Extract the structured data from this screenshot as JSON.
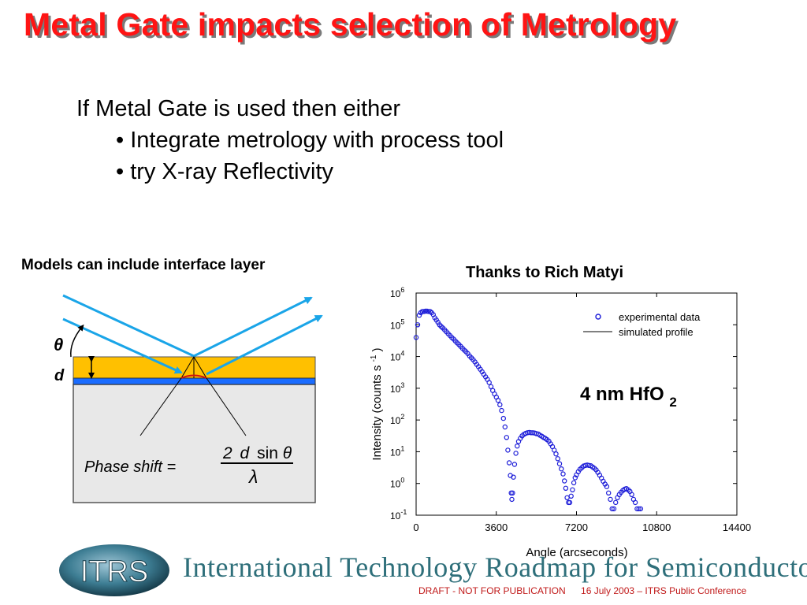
{
  "slide": {
    "title": "Metal Gate impacts selection of Metrology",
    "intro": "If Metal Gate is used then either",
    "bullets": [
      "• Integrate metrology with process tool",
      "• try X-ray Reflectivity"
    ]
  },
  "diagram": {
    "caption": "Models can include interface layer",
    "theta_label": "θ",
    "d_label": "d",
    "phase_shift_label": "Phase shift  =",
    "numerator_coef": "2",
    "numerator_d": "d",
    "numerator_sin": "sin",
    "numerator_theta": "θ",
    "denominator": "λ",
    "colors": {
      "film": "#ffc000",
      "interface": "#1a6cff",
      "substrate": "#e8e8e8",
      "beam": "#1aa5e8"
    }
  },
  "credit": "Thanks to Rich Matyi",
  "footer": {
    "logo_text": "ITRS",
    "title": "International Technology Roadmap for Semiconductors",
    "draft_note": "DRAFT - NOT FOR PUBLICATION",
    "conference_note": "16 July 2003 – ITRS Public Conference"
  },
  "chart_data": {
    "type": "scatter",
    "annotation": {
      "main": "4 nm HfO",
      "sub": "2"
    },
    "xlabel": "Angle (arcseconds)",
    "ylabel": "Intensity (counts s",
    "ylabel_sup": "-1",
    "ylabel_close": ")",
    "xlim": [
      0,
      14400
    ],
    "ylim_log10": [
      -1,
      6
    ],
    "log_y": true,
    "x_ticks": [
      0,
      3600,
      7200,
      10800,
      14400
    ],
    "x_tick_labels": [
      "0",
      "3600",
      "7200",
      "10800",
      "14400"
    ],
    "y_ticks": [
      {
        "exp": 6,
        "base": "10",
        "sup": "6"
      },
      {
        "exp": 5,
        "base": "10",
        "sup": "5"
      },
      {
        "exp": 4,
        "base": "10",
        "sup": "4"
      },
      {
        "exp": 3,
        "base": "10",
        "sup": "3"
      },
      {
        "exp": 2,
        "base": "10",
        "sup": "2"
      },
      {
        "exp": 1,
        "base": "10",
        "sup": "1"
      },
      {
        "exp": 0,
        "base": "10",
        "sup": "0"
      },
      {
        "exp": -1,
        "base": "10",
        "sup": "-1"
      }
    ],
    "legend": {
      "placement": "top-right",
      "entries": [
        {
          "label": "experimental data",
          "marker": "circle"
        },
        {
          "label": "simulated profile",
          "marker": "line"
        }
      ]
    },
    "point_color": "#1c1cd8",
    "series": [
      {
        "name": "experimental data",
        "points": [
          [
            0,
            4.6
          ],
          [
            70,
            5.0
          ],
          [
            140,
            5.3
          ],
          [
            210,
            5.38
          ],
          [
            280,
            5.42
          ],
          [
            350,
            5.42
          ],
          [
            420,
            5.43
          ],
          [
            490,
            5.43
          ],
          [
            560,
            5.42
          ],
          [
            630,
            5.42
          ],
          [
            700,
            5.38
          ],
          [
            770,
            5.32
          ],
          [
            840,
            5.22
          ],
          [
            910,
            5.15
          ],
          [
            980,
            5.08
          ],
          [
            1050,
            5.0
          ],
          [
            1120,
            4.95
          ],
          [
            1200,
            4.9
          ],
          [
            1280,
            4.84
          ],
          [
            1360,
            4.78
          ],
          [
            1440,
            4.72
          ],
          [
            1520,
            4.66
          ],
          [
            1600,
            4.6
          ],
          [
            1680,
            4.55
          ],
          [
            1760,
            4.49
          ],
          [
            1840,
            4.43
          ],
          [
            1920,
            4.38
          ],
          [
            2000,
            4.32
          ],
          [
            2080,
            4.26
          ],
          [
            2160,
            4.2
          ],
          [
            2240,
            4.15
          ],
          [
            2320,
            4.09
          ],
          [
            2400,
            4.02
          ],
          [
            2480,
            3.96
          ],
          [
            2560,
            3.9
          ],
          [
            2640,
            3.83
          ],
          [
            2720,
            3.75
          ],
          [
            2800,
            3.68
          ],
          [
            2880,
            3.6
          ],
          [
            2960,
            3.52
          ],
          [
            3040,
            3.44
          ],
          [
            3120,
            3.36
          ],
          [
            3200,
            3.28
          ],
          [
            3280,
            3.18
          ],
          [
            3360,
            3.05
          ],
          [
            3440,
            2.93
          ],
          [
            3520,
            2.82
          ],
          [
            3600,
            2.72
          ],
          [
            3680,
            2.62
          ],
          [
            3760,
            2.48
          ],
          [
            3840,
            2.3
          ],
          [
            3920,
            2.05
          ],
          [
            3990,
            1.78
          ],
          [
            4060,
            1.45
          ],
          [
            4120,
            1.05
          ],
          [
            4180,
            0.65
          ],
          [
            4230,
            0.25
          ],
          [
            4270,
            -0.3
          ],
          [
            4300,
            -0.5
          ],
          [
            4330,
            -0.3
          ],
          [
            4370,
            0.2
          ],
          [
            4420,
            0.6
          ],
          [
            4480,
            0.95
          ],
          [
            4540,
            1.18
          ],
          [
            4600,
            1.32
          ],
          [
            4680,
            1.42
          ],
          [
            4760,
            1.5
          ],
          [
            4840,
            1.55
          ],
          [
            4920,
            1.58
          ],
          [
            5000,
            1.6
          ],
          [
            5080,
            1.61
          ],
          [
            5160,
            1.6
          ],
          [
            5240,
            1.6
          ],
          [
            5320,
            1.59
          ],
          [
            5400,
            1.57
          ],
          [
            5480,
            1.56
          ],
          [
            5560,
            1.52
          ],
          [
            5640,
            1.49
          ],
          [
            5720,
            1.45
          ],
          [
            5800,
            1.42
          ],
          [
            5880,
            1.38
          ],
          [
            5960,
            1.33
          ],
          [
            6040,
            1.25
          ],
          [
            6120,
            1.16
          ],
          [
            6200,
            1.05
          ],
          [
            6280,
            0.93
          ],
          [
            6360,
            0.78
          ],
          [
            6440,
            0.62
          ],
          [
            6520,
            0.46
          ],
          [
            6600,
            0.3
          ],
          [
            6660,
            0.08
          ],
          [
            6720,
            -0.15
          ],
          [
            6780,
            -0.45
          ],
          [
            6840,
            -0.6
          ],
          [
            6900,
            -0.6
          ],
          [
            6960,
            -0.4
          ],
          [
            7020,
            -0.2
          ],
          [
            7080,
            0.02
          ],
          [
            7140,
            0.18
          ],
          [
            7200,
            0.27
          ],
          [
            7280,
            0.37
          ],
          [
            7360,
            0.45
          ],
          [
            7440,
            0.5
          ],
          [
            7520,
            0.55
          ],
          [
            7600,
            0.57
          ],
          [
            7680,
            0.58
          ],
          [
            7760,
            0.57
          ],
          [
            7840,
            0.56
          ],
          [
            7920,
            0.52
          ],
          [
            8000,
            0.48
          ],
          [
            8080,
            0.43
          ],
          [
            8160,
            0.35
          ],
          [
            8240,
            0.26
          ],
          [
            8320,
            0.17
          ],
          [
            8400,
            0.07
          ],
          [
            8480,
            -0.02
          ],
          [
            8560,
            -0.1
          ],
          [
            8640,
            -0.3
          ],
          [
            8720,
            -0.5
          ],
          [
            8800,
            -0.8
          ],
          [
            8880,
            -0.8
          ],
          [
            8960,
            -0.6
          ],
          [
            9040,
            -0.45
          ],
          [
            9120,
            -0.35
          ],
          [
            9200,
            -0.28
          ],
          [
            9280,
            -0.22
          ],
          [
            9360,
            -0.18
          ],
          [
            9440,
            -0.16
          ],
          [
            9520,
            -0.2
          ],
          [
            9600,
            -0.25
          ],
          [
            9680,
            -0.35
          ],
          [
            9760,
            -0.5
          ],
          [
            9840,
            -0.6
          ],
          [
            9920,
            -0.8
          ],
          [
            10000,
            -0.8
          ],
          [
            10080,
            -0.8
          ]
        ]
      }
    ],
    "note_unused": ""
  }
}
